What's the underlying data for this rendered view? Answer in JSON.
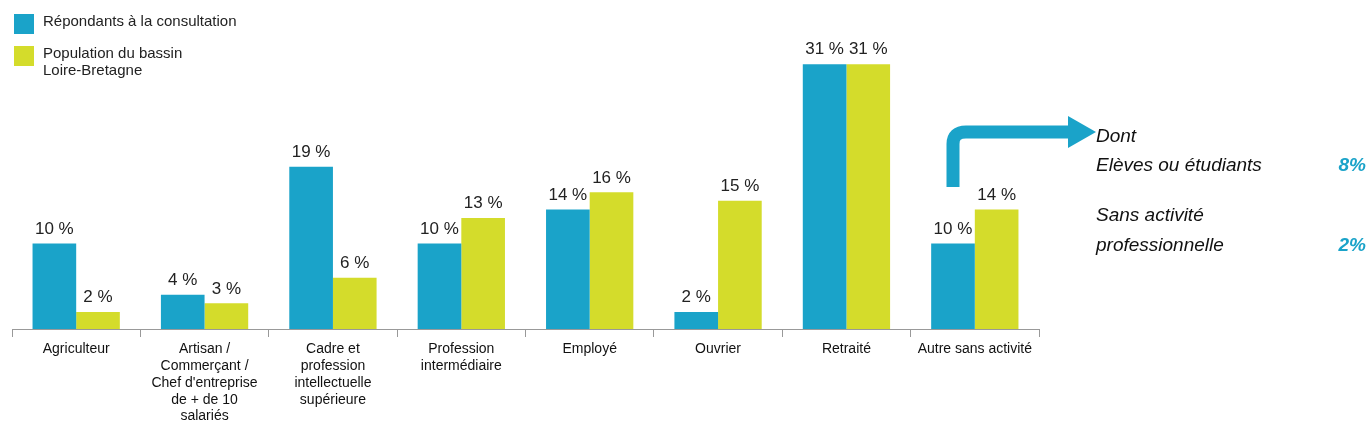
{
  "chart_data": {
    "type": "bar",
    "categories": [
      "Agriculteur",
      "Artisan / Commerçant / Chef d'entreprise de + de 10 salariés",
      "Cadre et profession intellectuelle supérieure",
      "Profession intermédiaire",
      "Employé",
      "Ouvrier",
      "Retraité",
      "Autre sans activité"
    ],
    "series": [
      {
        "name": "Répondants à la consultation",
        "color": "#1aa3c9",
        "values": [
          10,
          4,
          19,
          10,
          14,
          2,
          31,
          10
        ],
        "value_labels": [
          "10 %",
          "4 %",
          "19 %",
          "10 %",
          "14 %",
          "2 %",
          "31 %",
          "10 %"
        ]
      },
      {
        "name": "Population du bassin Loire-Bretagne",
        "color": "#d4dc2b",
        "values": [
          2,
          3,
          6,
          13,
          16,
          15,
          31,
          14
        ],
        "value_labels": [
          "2 %",
          "3 %",
          "6 %",
          "13 %",
          "16 %",
          "15 %",
          "31 %",
          "14 %"
        ]
      }
    ],
    "legend": "top left",
    "annotations": [
      "Dont",
      "Elèves ou étudiants",
      "8%",
      "Sans activité professionnelle",
      "2%"
    ]
  }
}
